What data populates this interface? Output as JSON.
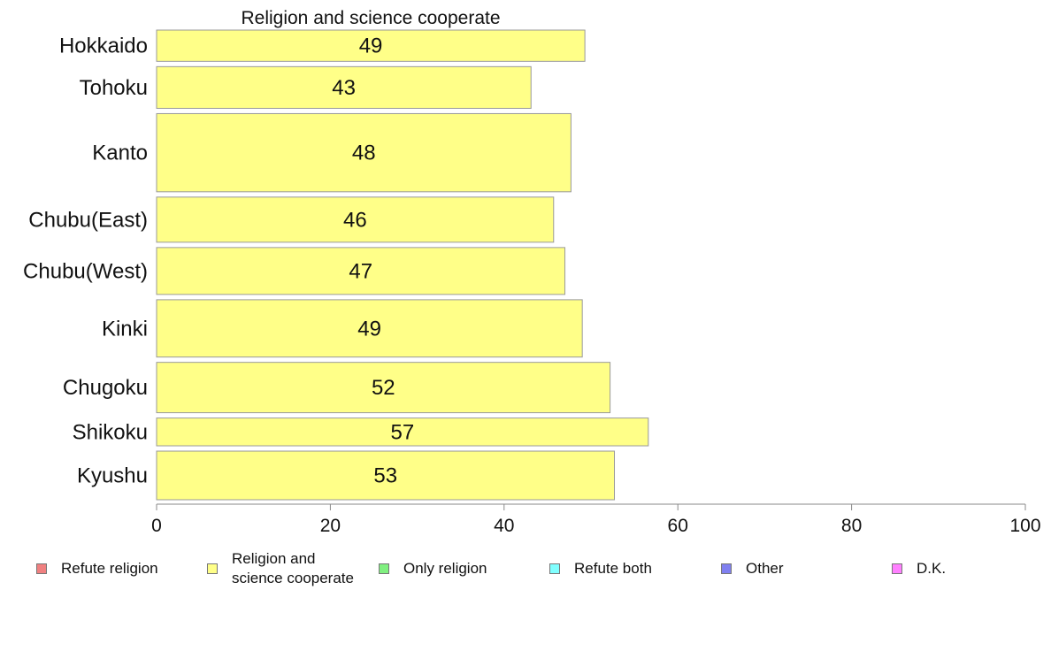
{
  "chart_data": {
    "type": "bar",
    "orientation": "horizontal",
    "title": "Religion and science cooperate",
    "categories": [
      "Hokkaido",
      "Tohoku",
      "Kanto",
      "Chubu(East)",
      "Chubu(West)",
      "Kinki",
      "Chugoku",
      "Shikoku",
      "Kyushu"
    ],
    "series": [
      {
        "name": "Religion and science cooperate",
        "values": [
          49,
          43,
          48,
          46,
          47,
          49,
          52,
          57,
          53
        ]
      }
    ],
    "data_labels": [
      "49",
      "43",
      "48",
      "46",
      "47",
      "49",
      "52",
      "57",
      "53"
    ],
    "plotted_values": [
      49.3,
      43.1,
      47.7,
      45.7,
      47.0,
      49.0,
      52.2,
      56.6,
      52.7
    ],
    "bar_weights": [
      36,
      48,
      90,
      52,
      54,
      66,
      58,
      32,
      56
    ],
    "xlim": [
      0,
      100
    ],
    "xticks": [
      "0",
      "20",
      "40",
      "60",
      "80",
      "100"
    ],
    "xlabel": "",
    "ylabel": "",
    "grid": false,
    "legend_position": "bottom",
    "bar_color": "#ffff88",
    "bar_border": "#999999"
  },
  "legend": [
    {
      "label": "Refute religion",
      "color": "#f08080"
    },
    {
      "label": "Religion and\nscience cooperate",
      "color": "#ffff88"
    },
    {
      "label": "Only religion",
      "color": "#80f080"
    },
    {
      "label": "Refute both",
      "color": "#80ffff"
    },
    {
      "label": "Other",
      "color": "#8080f0"
    },
    {
      "label": "D.K.",
      "color": "#ff80ff"
    }
  ]
}
